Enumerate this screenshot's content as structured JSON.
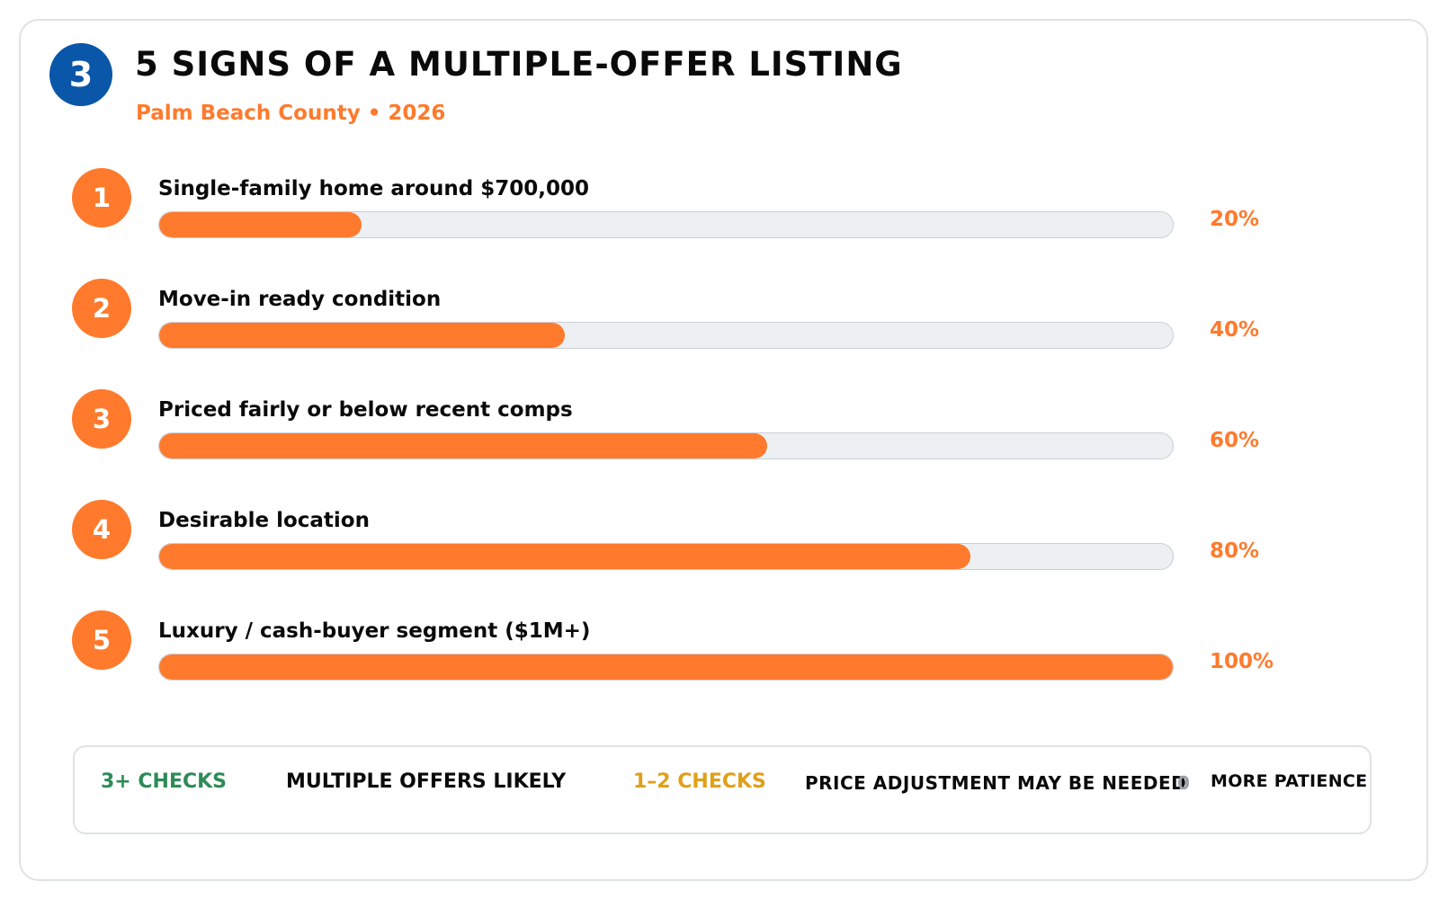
{
  "header": {
    "step_number": "3",
    "title": "5 SIGNS OF A MULTIPLE-OFFER LISTING",
    "subtitle": "Palm Beach County • 2026"
  },
  "colors": {
    "step_badge": "#0a56a8",
    "accent": "#ff7a2c",
    "track": "#edf0f3",
    "good": "#2e8b57",
    "warn": "#e0a019"
  },
  "chart_data": {
    "type": "bar",
    "orientation": "horizontal",
    "categories": [
      "Single-family home around $700,000",
      "Move-in ready condition",
      "Priced fairly or below recent comps",
      "Desirable location",
      "Luxury / cash-buyer segment ($1M+)"
    ],
    "numbers": [
      "1",
      "2",
      "3",
      "4",
      "5"
    ],
    "values": [
      20,
      40,
      60,
      80,
      100
    ],
    "value_labels": [
      "20%",
      "40%",
      "60%",
      "80%",
      "100%"
    ],
    "xlim": [
      0,
      100
    ]
  },
  "legend": {
    "item1_label": "3+ CHECKS",
    "item1_text": "MULTIPLE OFFERS LIKELY",
    "item2_label": "1–2 CHECKS",
    "item2_text": "PRICE ADJUSTMENT MAY BE NEEDED",
    "item3_label": "0",
    "item3_text": "MORE PATIENCE"
  }
}
